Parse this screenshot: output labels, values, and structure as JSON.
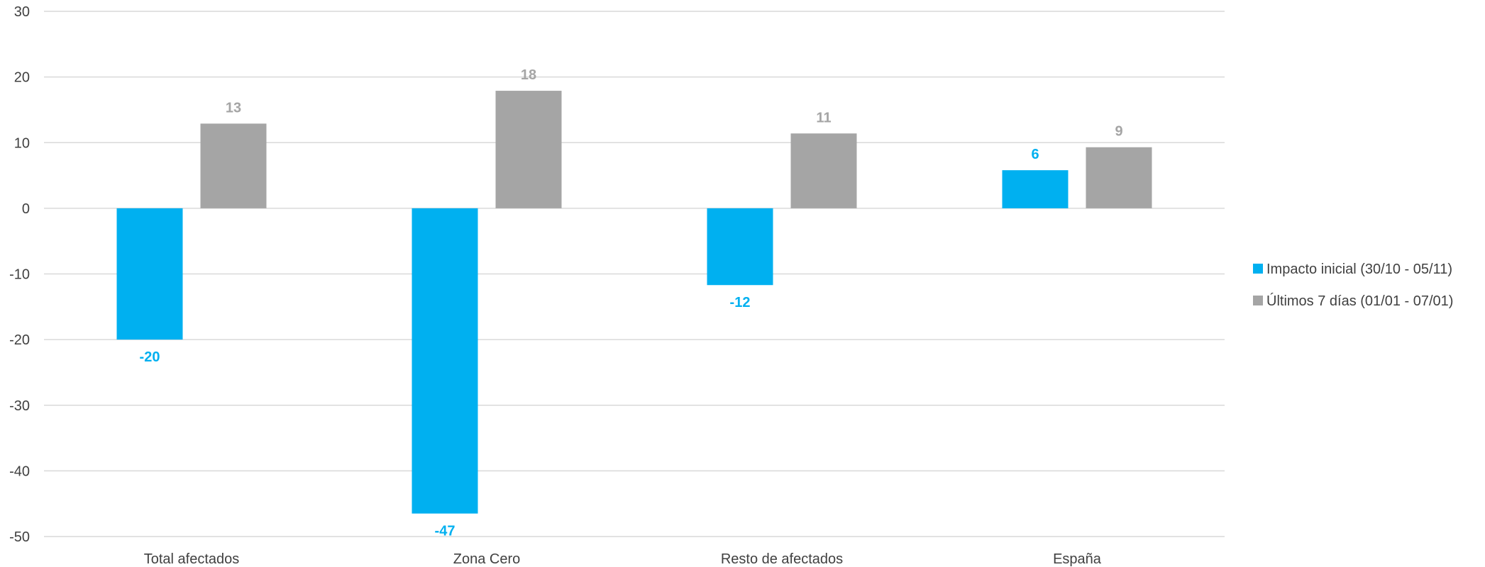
{
  "chart_data": {
    "type": "bar",
    "title": "",
    "xlabel": "",
    "ylabel": "",
    "ylim": [
      -50,
      30
    ],
    "yticks": [
      30,
      20,
      10,
      0,
      -10,
      -20,
      -30,
      -40,
      -50
    ],
    "grid": true,
    "legend_position": "right",
    "categories": [
      "Total afectados",
      "Zona Cero",
      "Resto de afectados",
      "España"
    ],
    "series": [
      {
        "name": "Impacto inicial (30/10 - 05/11)",
        "color": "#00B0F0",
        "values": [
          -20,
          -46.5,
          -11.7,
          5.8
        ],
        "labels": [
          "-20",
          "-47",
          "-12",
          "6"
        ]
      },
      {
        "name": "Últimos 7 días (01/01 - 07/01)",
        "color": "#A5A5A5",
        "values": [
          12.9,
          17.9,
          11.4,
          9.3
        ],
        "labels": [
          "13",
          "18",
          "11",
          "9"
        ]
      }
    ]
  }
}
